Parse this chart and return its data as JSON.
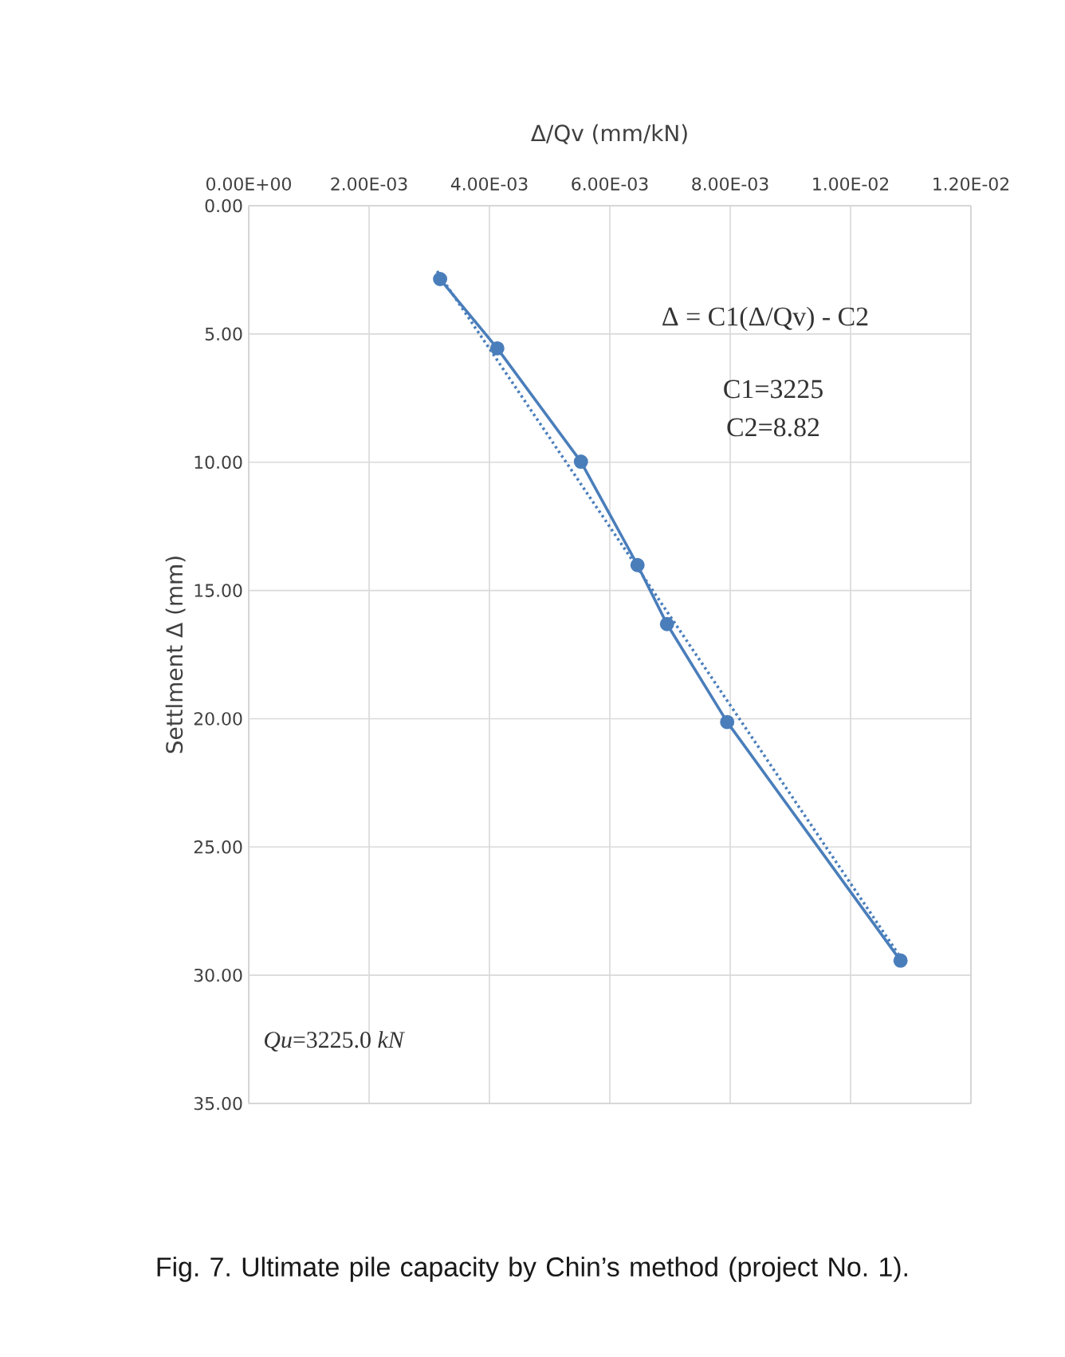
{
  "chart_data": {
    "type": "line",
    "xlabel": "Δ/Qv (mm/kN)",
    "ylabel": "Settlment Δ (mm)",
    "xlim": [
      0,
      0.012
    ],
    "ylim": [
      35,
      0
    ],
    "xticks": [
      {
        "value": 0,
        "label": "0.00E+00"
      },
      {
        "value": 0.002,
        "label": "2.00E-03"
      },
      {
        "value": 0.004,
        "label": "4.00E-03"
      },
      {
        "value": 0.006,
        "label": "6.00E-03"
      },
      {
        "value": 0.008,
        "label": "8.00E-03"
      },
      {
        "value": 0.01,
        "label": "1.00E-02"
      },
      {
        "value": 0.012,
        "label": "1.20E-02"
      }
    ],
    "yticks": [
      {
        "value": 0,
        "label": "0.00"
      },
      {
        "value": 5,
        "label": "5.00"
      },
      {
        "value": 10,
        "label": "10.00"
      },
      {
        "value": 15,
        "label": "15.00"
      },
      {
        "value": 20,
        "label": "20.00"
      },
      {
        "value": 25,
        "label": "25.00"
      },
      {
        "value": 30,
        "label": "30.00"
      },
      {
        "value": 35,
        "label": "35.00"
      }
    ],
    "series": [
      {
        "color": "#4a7ebb",
        "marker": "circle",
        "line_style": "solid",
        "x": [
          0.00318,
          0.00413,
          0.00552,
          0.00646,
          0.00695,
          0.00795,
          0.01083
        ],
        "values": [
          2.86,
          5.56,
          9.98,
          14.01,
          16.31,
          20.13,
          29.43
        ]
      },
      {
        "color": "#4a7ebb",
        "marker": "none",
        "line_style": "dotted",
        "x": [
          0.00313,
          0.0108
        ],
        "values": [
          2.55,
          29.2
        ]
      }
    ],
    "grid": true,
    "annotations": [
      "Δ = C1(Δ/Qv) - C2",
      "C1=3225",
      "C2=8.82",
      "*Qu*=3225.0 *kN*",
      "Fig. 7. Ultimate pile capacity by Chin’s method (project No. 1)."
    ]
  }
}
